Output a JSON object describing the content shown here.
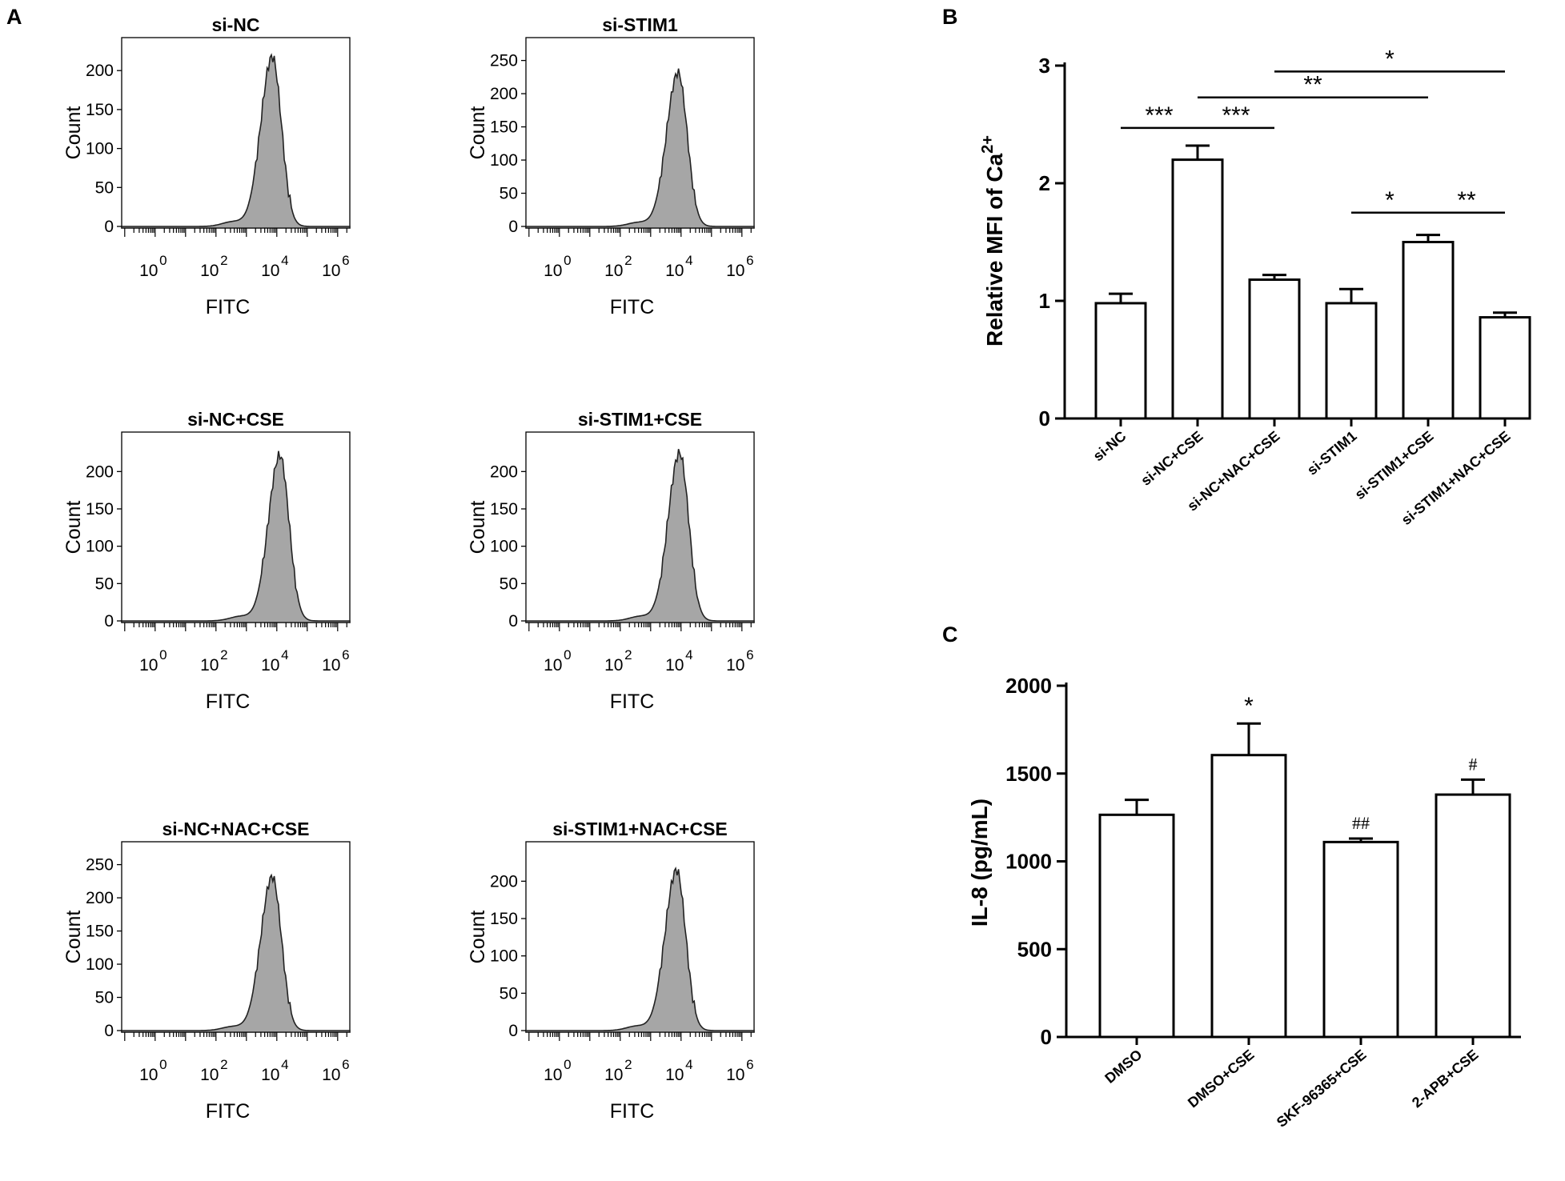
{
  "chart_data": [
    {
      "type": "histogram",
      "panel": "A",
      "title": "si-NC",
      "xlabel": "FITC",
      "ylabel": "Count",
      "x_scale": "log10",
      "x_tick_labels": [
        {
          "base": "10",
          "exp": "0"
        },
        {
          "base": "10",
          "exp": "2"
        },
        {
          "base": "10",
          "exp": "4"
        },
        {
          "base": "10",
          "exp": "6"
        }
      ],
      "y_ticks": [
        0,
        50,
        100,
        150,
        200
      ],
      "ylim": [
        0,
        230
      ],
      "peak_log10": 3.85,
      "peak_count": 218,
      "color": "#a6a6a6"
    },
    {
      "type": "histogram",
      "panel": "A",
      "title": "si-STIM1",
      "xlabel": "FITC",
      "ylabel": "Count",
      "x_scale": "log10",
      "x_tick_labels": [
        {
          "base": "10",
          "exp": "0"
        },
        {
          "base": "10",
          "exp": "2"
        },
        {
          "base": "10",
          "exp": "4"
        },
        {
          "base": "10",
          "exp": "6"
        }
      ],
      "y_ticks": [
        0,
        50,
        100,
        150,
        200,
        250
      ],
      "ylim": [
        0,
        270
      ],
      "peak_log10": 3.9,
      "peak_count": 232,
      "color": "#a6a6a6"
    },
    {
      "type": "histogram",
      "panel": "A",
      "title": "si-NC+CSE",
      "xlabel": "FITC",
      "ylabel": "Count",
      "x_scale": "log10",
      "x_tick_labels": [
        {
          "base": "10",
          "exp": "0"
        },
        {
          "base": "10",
          "exp": "2"
        },
        {
          "base": "10",
          "exp": "4"
        },
        {
          "base": "10",
          "exp": "6"
        }
      ],
      "y_ticks": [
        0,
        50,
        100,
        150,
        200
      ],
      "ylim": [
        0,
        240
      ],
      "peak_log10": 4.1,
      "peak_count": 222,
      "color": "#a6a6a6"
    },
    {
      "type": "histogram",
      "panel": "A",
      "title": "si-STIM1+CSE",
      "xlabel": "FITC",
      "ylabel": "Count",
      "x_scale": "log10",
      "x_tick_labels": [
        {
          "base": "10",
          "exp": "0"
        },
        {
          "base": "10",
          "exp": "2"
        },
        {
          "base": "10",
          "exp": "4"
        },
        {
          "base": "10",
          "exp": "6"
        }
      ],
      "y_ticks": [
        0,
        50,
        100,
        150,
        200
      ],
      "ylim": [
        0,
        240
      ],
      "peak_log10": 3.95,
      "peak_count": 225,
      "color": "#a6a6a6"
    },
    {
      "type": "histogram",
      "panel": "A",
      "title": "si-NC+NAC+CSE",
      "xlabel": "FITC",
      "ylabel": "Count",
      "x_scale": "log10",
      "x_tick_labels": [
        {
          "base": "10",
          "exp": "0"
        },
        {
          "base": "10",
          "exp": "2"
        },
        {
          "base": "10",
          "exp": "4"
        },
        {
          "base": "10",
          "exp": "6"
        }
      ],
      "y_ticks": [
        0,
        50,
        100,
        150,
        200,
        250
      ],
      "ylim": [
        0,
        270
      ],
      "peak_log10": 3.85,
      "peak_count": 232,
      "color": "#a6a6a6"
    },
    {
      "type": "histogram",
      "panel": "A",
      "title": "si-STIM1+NAC+CSE",
      "xlabel": "FITC",
      "ylabel": "Count",
      "x_scale": "log10",
      "x_tick_labels": [
        {
          "base": "10",
          "exp": "0"
        },
        {
          "base": "10",
          "exp": "2"
        },
        {
          "base": "10",
          "exp": "4"
        },
        {
          "base": "10",
          "exp": "6"
        }
      ],
      "y_ticks": [
        0,
        50,
        100,
        150,
        200
      ],
      "ylim": [
        0,
        240
      ],
      "peak_log10": 3.85,
      "peak_count": 215,
      "color": "#a6a6a6"
    },
    {
      "type": "bar",
      "panel": "B",
      "categories": [
        "si-NC",
        "si-NC+CSE",
        "si-NC+NAC+CSE",
        "si-STIM1",
        "si-STIM1+CSE",
        "si-STIM1+NAC+CSE"
      ],
      "values": [
        0.98,
        2.2,
        1.18,
        0.98,
        1.5,
        0.86
      ],
      "errors": [
        0.08,
        0.12,
        0.04,
        0.12,
        0.06,
        0.04
      ],
      "ylabel": "Relative MFI of Ca",
      "ylabel_sup": "2+",
      "ylim": [
        0,
        3
      ],
      "y_ticks": [
        "0",
        "1",
        "2",
        "3"
      ],
      "significance": [
        {
          "from": 0,
          "to": 1,
          "label": "***",
          "level": 2.47
        },
        {
          "from": 1,
          "to": 2,
          "label": "***",
          "level": 2.47
        },
        {
          "from": 1,
          "to": 4,
          "label": "**",
          "level": 2.73
        },
        {
          "from": 2,
          "to": 5,
          "label": "*",
          "level": 2.95
        },
        {
          "from": 3,
          "to": 4,
          "label": "*",
          "level": 1.75
        },
        {
          "from": 4,
          "to": 5,
          "label": "**",
          "level": 1.75
        }
      ]
    },
    {
      "type": "bar",
      "panel": "C",
      "categories": [
        "DMSO",
        "DMSO+CSE",
        "SKF-96365+CSE",
        "2-APB+CSE"
      ],
      "values": [
        1265,
        1605,
        1110,
        1380
      ],
      "errors": [
        85,
        180,
        20,
        85
      ],
      "ylabel": "IL-8 (pg/mL)",
      "ylim": [
        0,
        2000
      ],
      "y_ticks": [
        "0",
        "500",
        "1000",
        "1500",
        "2000"
      ],
      "annotations": [
        "",
        "*",
        "##",
        "#"
      ]
    }
  ],
  "panel_labels": {
    "a": "A",
    "b": "B",
    "c": "C"
  }
}
